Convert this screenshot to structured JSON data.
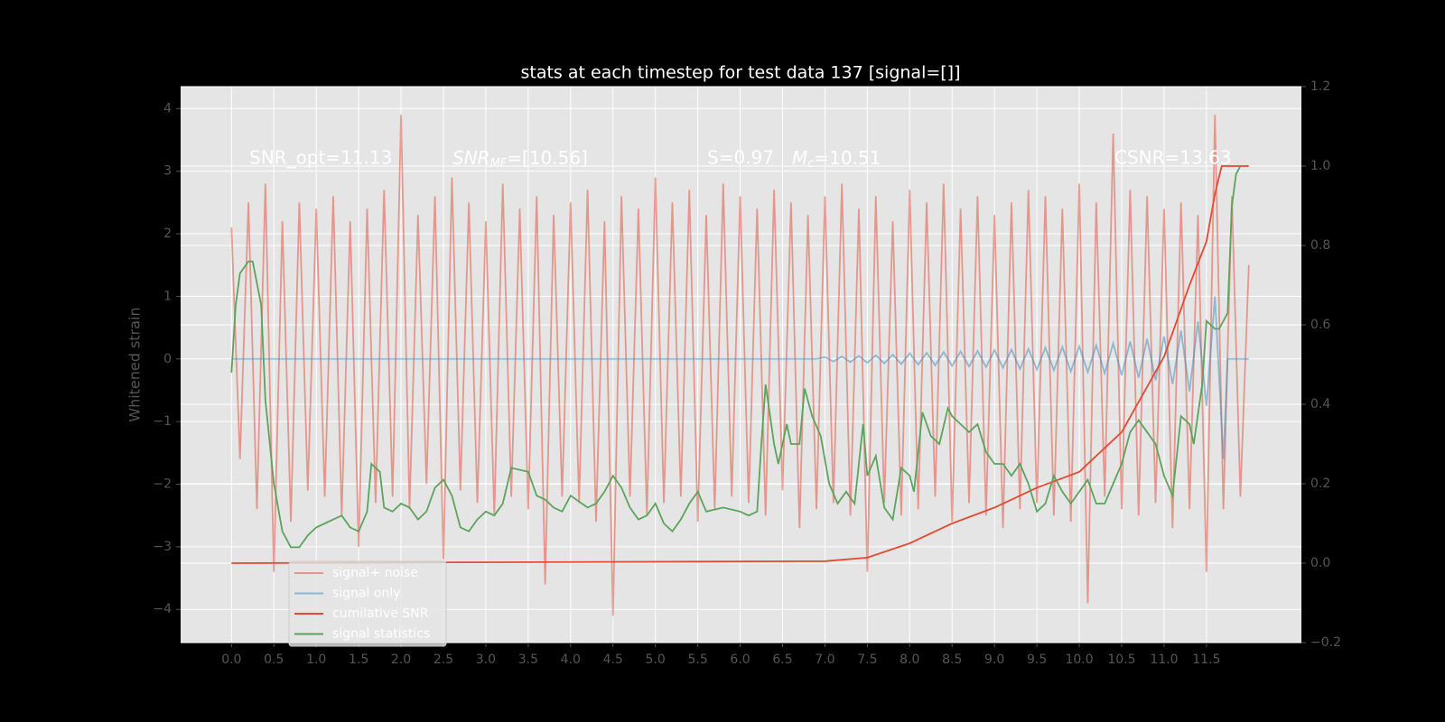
{
  "chart_data": {
    "type": "line",
    "title": "stats at each timestep for test data 137 [signal=[]]",
    "y_label": "Whitened strain",
    "xlim": [
      -0.6,
      12.62
    ],
    "ylim": [
      -4.53,
      4.35
    ],
    "y2lim": [
      -0.2,
      1.2
    ],
    "xticks": [
      {
        "value": 0,
        "label": "0.0"
      },
      {
        "value": 0.5,
        "label": "0.5"
      },
      {
        "value": 1,
        "label": "1.0"
      },
      {
        "value": 1.5,
        "label": "1.5"
      },
      {
        "value": 2,
        "label": "2.0"
      },
      {
        "value": 2.5,
        "label": "2.5"
      },
      {
        "value": 3,
        "label": "3.0"
      },
      {
        "value": 3.5,
        "label": "3.5"
      },
      {
        "value": 4,
        "label": "4.0"
      },
      {
        "value": 4.5,
        "label": "4.5"
      },
      {
        "value": 5,
        "label": "5.0"
      },
      {
        "value": 5.5,
        "label": "5.5"
      },
      {
        "value": 6,
        "label": "6.0"
      },
      {
        "value": 6.5,
        "label": "6.5"
      },
      {
        "value": 7,
        "label": "7.0"
      },
      {
        "value": 7.5,
        "label": "7.5"
      },
      {
        "value": 8,
        "label": "8.0"
      },
      {
        "value": 8.5,
        "label": "8.5"
      },
      {
        "value": 9,
        "label": "9.0"
      },
      {
        "value": 9.5,
        "label": "9.5"
      },
      {
        "value": 10,
        "label": "10.0"
      },
      {
        "value": 10.5,
        "label": "10.5"
      },
      {
        "value": 11,
        "label": "11.0"
      },
      {
        "value": 11.5,
        "label": "11.5"
      }
    ],
    "yticks": [
      {
        "value": -4,
        "label": "−4"
      },
      {
        "value": -3,
        "label": "−3"
      },
      {
        "value": -2,
        "label": "−2"
      },
      {
        "value": -1,
        "label": "−1"
      },
      0,
      1,
      2,
      3,
      4
    ],
    "y2ticks": [
      {
        "value": -0.2,
        "label": "−0.2"
      },
      {
        "value": 0,
        "label": "0.0"
      },
      {
        "value": 0.2,
        "label": "0.2"
      },
      {
        "value": 0.4,
        "label": "0.4"
      },
      {
        "value": 0.6,
        "label": "0.6"
      },
      {
        "value": 0.8,
        "label": "0.8"
      },
      {
        "value": 1,
        "label": "1.0"
      },
      {
        "value": 1.2,
        "label": "1.2"
      }
    ],
    "grid": true,
    "legend": "lower left",
    "annotations": [
      "SNR_opt=11.13",
      {
        "main": "SNR",
        "sub": "MF",
        "rest": "=[10.56]"
      },
      "S=0.97",
      {
        "main": "M",
        "sub": "c",
        "rest": "=10.51"
      },
      "CSNR=13.63"
    ],
    "series": [
      {
        "name": "signal+ noise",
        "color": "#e24a33",
        "alpha": 0.5,
        "x": [
          0,
          0.1,
          0.2,
          0.3,
          0.4,
          0.5,
          0.6,
          0.7,
          0.8,
          0.9,
          1,
          1.1,
          1.2,
          1.3,
          1.4,
          1.5,
          1.6,
          1.7,
          1.8,
          1.9,
          2,
          2.1,
          2.2,
          2.3,
          2.4,
          2.5,
          2.6,
          2.7,
          2.8,
          2.9,
          3,
          3.1,
          3.2,
          3.3,
          3.4,
          3.5,
          3.6,
          3.7,
          3.8,
          3.9,
          4,
          4.1,
          4.2,
          4.3,
          4.4,
          4.5,
          4.6,
          4.7,
          4.8,
          4.9,
          5,
          5.1,
          5.2,
          5.3,
          5.4,
          5.5,
          5.6,
          5.7,
          5.8,
          5.9,
          6,
          6.1,
          6.2,
          6.3,
          6.4,
          6.5,
          6.6,
          6.7,
          6.8,
          6.9,
          7,
          7.1,
          7.2,
          7.3,
          7.4,
          7.5,
          7.6,
          7.7,
          7.8,
          7.9,
          8,
          8.1,
          8.2,
          8.3,
          8.4,
          8.5,
          8.6,
          8.7,
          8.8,
          8.9,
          9,
          9.1,
          9.2,
          9.3,
          9.4,
          9.5,
          9.6,
          9.7,
          9.8,
          9.9,
          10,
          10.1,
          10.2,
          10.3,
          10.4,
          10.5,
          10.6,
          10.7,
          10.8,
          10.9,
          11,
          11.1,
          11.2,
          11.3,
          11.4,
          11.5,
          11.6,
          11.7,
          11.8,
          11.9,
          12
        ],
        "values": [
          2.1,
          -1.6,
          2.5,
          -2.4,
          2.8,
          -3.4,
          2.2,
          -2.6,
          2.5,
          -2.1,
          2.4,
          -2.2,
          2.6,
          -2.5,
          2.2,
          -3.0,
          2.4,
          -2.3,
          2.7,
          -2.2,
          3.9,
          -2.4,
          2.3,
          -2.0,
          2.6,
          -3.2,
          2.9,
          -2.1,
          2.5,
          -2.3,
          2.2,
          -2.5,
          2.8,
          -2.2,
          2.4,
          -2.4,
          2.6,
          -3.6,
          2.3,
          -2.2,
          2.5,
          -2.3,
          2.7,
          -2.6,
          2.2,
          -4.1,
          2.6,
          -2.2,
          2.4,
          -2.5,
          2.9,
          -2.3,
          2.5,
          -2.2,
          2.7,
          -2.6,
          2.3,
          -2.4,
          2.8,
          -2.2,
          2.6,
          -2.3,
          2.4,
          -2.5,
          2.7,
          -2.1,
          2.5,
          -2.7,
          2.3,
          -2.4,
          2.6,
          -2.3,
          2.8,
          -2.5,
          2.4,
          -3.4,
          2.6,
          -2.3,
          2.2,
          -2.5,
          2.7,
          -2.4,
          2.5,
          -2.2,
          2.8,
          -2.6,
          2.4,
          -2.3,
          2.6,
          -2.5,
          2.3,
          -2.7,
          2.5,
          -2.4,
          2.7,
          -2.3,
          2.6,
          -2.5,
          2.4,
          -2.6,
          2.8,
          -3.9,
          2.5,
          -2.2,
          3.6,
          -2.4,
          2.7,
          -2.5,
          2.6,
          -2.3,
          2.4,
          -2.7,
          2.5,
          -2.4,
          2.3,
          -3.4,
          3.9,
          -2.4,
          2.6,
          -2.2,
          1.5
        ]
      },
      {
        "name": "signal only",
        "color": "#348abd",
        "alpha": 0.5,
        "x": [
          0,
          6.9,
          7,
          7.1,
          7.2,
          7.3,
          7.4,
          7.5,
          7.6,
          7.7,
          7.8,
          7.9,
          8,
          8.1,
          8.2,
          8.3,
          8.4,
          8.5,
          8.6,
          8.7,
          8.8,
          8.9,
          9,
          9.1,
          9.2,
          9.3,
          9.4,
          9.5,
          9.6,
          9.7,
          9.8,
          9.9,
          10,
          10.1,
          10.2,
          10.3,
          10.4,
          10.5,
          10.6,
          10.7,
          10.8,
          10.9,
          11,
          11.1,
          11.2,
          11.3,
          11.4,
          11.5,
          11.6,
          11.7,
          11.75,
          12
        ],
        "values": [
          0,
          0,
          0.03,
          -0.04,
          0.04,
          -0.05,
          0.05,
          -0.06,
          0.06,
          -0.07,
          0.07,
          -0.08,
          0.09,
          -0.09,
          0.1,
          -0.1,
          0.11,
          -0.11,
          0.12,
          -0.12,
          0.13,
          -0.13,
          0.14,
          -0.14,
          0.15,
          -0.16,
          0.16,
          -0.17,
          0.18,
          -0.18,
          0.19,
          -0.2,
          0.2,
          -0.21,
          0.22,
          -0.23,
          0.25,
          -0.26,
          0.28,
          -0.3,
          0.32,
          -0.34,
          0.36,
          -0.4,
          0.45,
          -0.52,
          0.6,
          -0.75,
          1.0,
          -1.6,
          0,
          0
        ]
      },
      {
        "name": "cumilative SNR",
        "color": "#e24a33",
        "axis": "y2",
        "x": [
          0,
          7,
          7.5,
          8,
          8.5,
          9,
          9.5,
          10,
          10.5,
          11,
          11.3,
          11.5,
          11.6,
          11.68,
          12
        ],
        "values": [
          0,
          0.005,
          0.014,
          0.05,
          0.1,
          0.14,
          0.19,
          0.23,
          0.33,
          0.52,
          0.7,
          0.81,
          0.93,
          1.0,
          1.0
        ]
      },
      {
        "name": "signal statistics",
        "color": "#5ca35c",
        "axis": "y2",
        "x": [
          0,
          0.05,
          0.1,
          0.2,
          0.25,
          0.35,
          0.4,
          0.5,
          0.6,
          0.7,
          0.8,
          0.9,
          1,
          1.1,
          1.3,
          1.4,
          1.5,
          1.6,
          1.65,
          1.75,
          1.8,
          1.9,
          2,
          2.1,
          2.2,
          2.3,
          2.4,
          2.5,
          2.6,
          2.7,
          2.8,
          2.9,
          3,
          3.1,
          3.2,
          3.3,
          3.5,
          3.6,
          3.7,
          3.8,
          3.9,
          4,
          4.2,
          4.3,
          4.4,
          4.5,
          4.6,
          4.7,
          4.8,
          4.9,
          5,
          5.1,
          5.2,
          5.3,
          5.4,
          5.5,
          5.6,
          5.8,
          6,
          6.1,
          6.2,
          6.25,
          6.3,
          6.4,
          6.45,
          6.55,
          6.6,
          6.7,
          6.76,
          6.85,
          6.95,
          7.05,
          7.15,
          7.25,
          7.35,
          7.45,
          7.5,
          7.6,
          7.7,
          7.8,
          7.9,
          8,
          8.05,
          8.15,
          8.25,
          8.35,
          8.45,
          8.5,
          8.6,
          8.7,
          8.8,
          8.9,
          9,
          9.1,
          9.2,
          9.3,
          9.4,
          9.5,
          9.6,
          9.7,
          9.8,
          9.9,
          10,
          10.1,
          10.2,
          10.3,
          10.4,
          10.5,
          10.6,
          10.7,
          10.8,
          10.9,
          11,
          11.1,
          11.2,
          11.3,
          11.35,
          11.45,
          11.5,
          11.6,
          11.65,
          11.75,
          11.8,
          11.85,
          11.9
        ],
        "values": [
          0.48,
          0.65,
          0.73,
          0.76,
          0.76,
          0.65,
          0.41,
          0.2,
          0.08,
          0.04,
          0.04,
          0.07,
          0.09,
          0.1,
          0.12,
          0.09,
          0.08,
          0.13,
          0.25,
          0.23,
          0.14,
          0.13,
          0.15,
          0.14,
          0.11,
          0.13,
          0.19,
          0.21,
          0.17,
          0.09,
          0.08,
          0.11,
          0.13,
          0.12,
          0.15,
          0.24,
          0.23,
          0.17,
          0.16,
          0.14,
          0.13,
          0.17,
          0.14,
          0.15,
          0.18,
          0.22,
          0.19,
          0.14,
          0.11,
          0.12,
          0.15,
          0.1,
          0.08,
          0.11,
          0.15,
          0.18,
          0.13,
          0.14,
          0.13,
          0.12,
          0.13,
          0.3,
          0.45,
          0.3,
          0.25,
          0.35,
          0.3,
          0.3,
          0.44,
          0.37,
          0.32,
          0.2,
          0.15,
          0.18,
          0.15,
          0.35,
          0.22,
          0.27,
          0.14,
          0.11,
          0.24,
          0.22,
          0.18,
          0.38,
          0.32,
          0.3,
          0.39,
          0.37,
          0.35,
          0.33,
          0.35,
          0.28,
          0.25,
          0.25,
          0.22,
          0.25,
          0.2,
          0.13,
          0.15,
          0.22,
          0.18,
          0.15,
          0.18,
          0.21,
          0.15,
          0.15,
          0.2,
          0.25,
          0.33,
          0.36,
          0.33,
          0.3,
          0.22,
          0.17,
          0.37,
          0.35,
          0.3,
          0.45,
          0.61,
          0.59,
          0.59,
          0.63,
          0.9,
          0.98,
          1.0
        ]
      }
    ]
  }
}
